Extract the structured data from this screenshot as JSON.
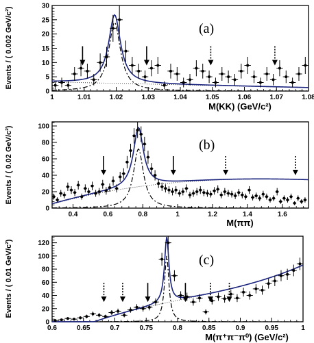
{
  "chart_data": [
    {
      "type": "scatter",
      "panel_label": "(a)",
      "xlabel": "M(KK) (GeV/c²)",
      "ylabel": "Events / ( 0.002 GeV/c²)",
      "xlim": [
        1.0,
        1.08
      ],
      "ylim": [
        0,
        30
      ],
      "x_ticks": [
        "1",
        "1.01",
        "1.02",
        "1.03",
        "1.04",
        "1.05",
        "1.06",
        "1.07",
        "1.08"
      ],
      "y_ticks": [
        "0",
        "5",
        "10",
        "15",
        "20",
        "25",
        "30"
      ],
      "data_points": {
        "x": [
          1.001,
          1.003,
          1.005,
          1.007,
          1.009,
          1.011,
          1.013,
          1.015,
          1.017,
          1.019,
          1.021,
          1.023,
          1.025,
          1.027,
          1.029,
          1.031,
          1.033,
          1.035,
          1.037,
          1.039,
          1.041,
          1.043,
          1.045,
          1.047,
          1.049,
          1.051,
          1.053,
          1.055,
          1.057,
          1.059,
          1.061,
          1.063,
          1.065,
          1.067,
          1.069,
          1.071,
          1.073,
          1.075,
          1.077,
          1.079
        ],
        "y": [
          2,
          3,
          2,
          6,
          8,
          7,
          4,
          10,
          12,
          22,
          25,
          14,
          9,
          7,
          5,
          8,
          9,
          2,
          7,
          6,
          3,
          4,
          8,
          7,
          5,
          3,
          6,
          5,
          4,
          7,
          9,
          5,
          3,
          6,
          4,
          8,
          5,
          3,
          6,
          9
        ],
        "yerr": [
          1.4,
          1.7,
          1.4,
          2.4,
          2.8,
          2.6,
          2.0,
          3.2,
          3.5,
          4.7,
          5.0,
          3.7,
          3.0,
          2.6,
          2.2,
          2.8,
          3.0,
          1.4,
          2.6,
          2.4,
          1.7,
          2.0,
          2.8,
          2.6,
          2.2,
          1.7,
          2.4,
          2.2,
          2.0,
          2.6,
          3.0,
          2.2,
          1.7,
          2.4,
          2.0,
          2.8,
          2.2,
          1.7,
          2.4,
          3.0
        ]
      },
      "peak": {
        "mass": 1.0195,
        "width": 0.0045,
        "height": 24
      },
      "background": {
        "type": "linear",
        "a0": 3.2,
        "a1": 25,
        "xref": 1.0
      },
      "solid_arrows_x": [
        1.0095,
        1.0295
      ],
      "dotted_arrows_x": [
        1.0495,
        1.0695
      ],
      "arrow_y": 9
    },
    {
      "type": "scatter",
      "panel_label": "(b)",
      "xlabel": "M(ππ)",
      "ylabel": "Events / ( 0.02 GeV/c²)",
      "xlim": [
        0.28,
        1.75
      ],
      "ylim": [
        0,
        105
      ],
      "x_ticks": [
        "0.4",
        "0.6",
        "0.8",
        "1",
        "1.2",
        "1.4",
        "1.6"
      ],
      "x_tick_values": [
        0.4,
        0.6,
        0.8,
        1.0,
        1.2,
        1.4,
        1.6
      ],
      "y_ticks": [
        "0",
        "20",
        "40",
        "60",
        "80",
        "100"
      ],
      "data_points": {
        "x": [
          0.29,
          0.31,
          0.33,
          0.35,
          0.37,
          0.39,
          0.41,
          0.43,
          0.45,
          0.47,
          0.49,
          0.51,
          0.53,
          0.55,
          0.57,
          0.59,
          0.61,
          0.63,
          0.65,
          0.67,
          0.69,
          0.71,
          0.73,
          0.75,
          0.77,
          0.79,
          0.81,
          0.83,
          0.85,
          0.87,
          0.89,
          0.91,
          0.93,
          0.95,
          0.97,
          0.99,
          1.01,
          1.03,
          1.05,
          1.07,
          1.09,
          1.11,
          1.13,
          1.15,
          1.17,
          1.19,
          1.21,
          1.23,
          1.25,
          1.27,
          1.29,
          1.31,
          1.33,
          1.35,
          1.37,
          1.39,
          1.41,
          1.43,
          1.45,
          1.47,
          1.49,
          1.51,
          1.53,
          1.55,
          1.57,
          1.59,
          1.61,
          1.63,
          1.65,
          1.67,
          1.69,
          1.71,
          1.73
        ],
        "y": [
          14,
          10,
          18,
          16,
          26,
          22,
          19,
          28,
          14,
          24,
          20,
          27,
          18,
          20,
          29,
          21,
          25,
          33,
          24,
          38,
          42,
          56,
          70,
          88,
          95,
          90,
          78,
          62,
          48,
          40,
          30,
          26,
          24,
          22,
          20,
          22,
          18,
          20,
          24,
          16,
          18,
          20,
          22,
          19,
          18,
          17,
          21,
          23,
          16,
          20,
          18,
          17,
          15,
          19,
          16,
          14,
          22,
          13,
          15,
          12,
          17,
          14,
          10,
          12,
          20,
          8,
          12,
          10,
          14,
          6,
          12,
          8,
          10
        ],
        "yerr": [
          3.7,
          3.2,
          4.2,
          4.0,
          5.1,
          4.7,
          4.4,
          5.3,
          3.7,
          4.9,
          4.5,
          5.2,
          4.2,
          4.5,
          5.4,
          4.6,
          5.0,
          5.7,
          4.9,
          6.2,
          6.5,
          7.5,
          8.4,
          9.4,
          9.7,
          9.5,
          8.8,
          7.9,
          6.9,
          6.3,
          5.5,
          5.1,
          4.9,
          4.7,
          4.5,
          4.7,
          4.2,
          4.5,
          4.9,
          4.0,
          4.2,
          4.5,
          4.7,
          4.4,
          4.2,
          4.1,
          4.6,
          4.8,
          4.0,
          4.5,
          4.2,
          4.1,
          3.9,
          4.4,
          4.0,
          3.7,
          4.7,
          3.6,
          3.9,
          3.5,
          4.1,
          3.7,
          3.2,
          3.5,
          4.5,
          2.8,
          3.5,
          3.2,
          3.7,
          2.4,
          3.5,
          2.8,
          3.2
        ]
      },
      "peak": {
        "mass": 0.775,
        "width": 0.07,
        "height": 72
      },
      "background": {
        "type": "poly",
        "coeffs": [
          -14,
          78,
          -38,
          5.3
        ]
      },
      "solid_arrows_x": [
        0.575,
        0.975
      ],
      "dotted_arrows_x": [
        1.275,
        1.675
      ],
      "arrow_y": 40
    },
    {
      "type": "scatter",
      "panel_label": "(c)",
      "xlabel": "M(π⁺π⁻π⁰) (GeV/c²)",
      "ylabel": "Events / ( 0.01 GeV/c²)",
      "xlim": [
        0.6,
        1.0
      ],
      "ylim": [
        0,
        130
      ],
      "x_ticks": [
        "0.6",
        "0.65",
        "0.7",
        "0.75",
        "0.8",
        "0.85",
        "0.9",
        "0.95",
        "1"
      ],
      "y_ticks": [
        "0",
        "20",
        "40",
        "60",
        "80",
        "100",
        "120"
      ],
      "data_points": {
        "x": [
          0.605,
          0.615,
          0.625,
          0.635,
          0.645,
          0.655,
          0.665,
          0.675,
          0.685,
          0.695,
          0.705,
          0.715,
          0.725,
          0.735,
          0.745,
          0.755,
          0.765,
          0.775,
          0.785,
          0.795,
          0.805,
          0.815,
          0.825,
          0.835,
          0.845,
          0.855,
          0.865,
          0.875,
          0.885,
          0.895,
          0.905,
          0.915,
          0.925,
          0.935,
          0.945,
          0.955,
          0.965,
          0.975,
          0.985,
          0.995
        ],
        "y": [
          2,
          3,
          5,
          4,
          6,
          8,
          12,
          10,
          8,
          14,
          16,
          10,
          18,
          22,
          20,
          22,
          30,
          95,
          120,
          70,
          40,
          38,
          30,
          36,
          15,
          32,
          38,
          35,
          42,
          36,
          45,
          40,
          50,
          48,
          58,
          62,
          70,
          72,
          78,
          88
        ],
        "yerr": [
          1.4,
          1.7,
          2.2,
          2.0,
          2.4,
          2.8,
          3.5,
          3.2,
          2.8,
          3.7,
          4.0,
          3.2,
          4.2,
          4.7,
          4.5,
          4.7,
          5.5,
          9.7,
          11.0,
          8.4,
          6.3,
          6.2,
          5.5,
          6.0,
          3.9,
          5.7,
          6.2,
          5.9,
          6.5,
          6.0,
          6.7,
          6.3,
          7.1,
          6.9,
          7.6,
          7.9,
          8.4,
          8.5,
          8.8,
          9.4
        ]
      },
      "peak": {
        "mass": 0.7827,
        "width": 0.0085,
        "height": 100
      },
      "background": {
        "type": "poly",
        "coeffs": [
          -1236.5,
          4306.2,
          -5065.8,
          2082.3
        ]
      },
      "solid_arrows_x": [
        0.7525,
        0.8125
      ],
      "dotted_arrows_x": [
        0.6825,
        0.7125,
        0.8525,
        0.8825
      ],
      "arrow_y": 30
    }
  ]
}
